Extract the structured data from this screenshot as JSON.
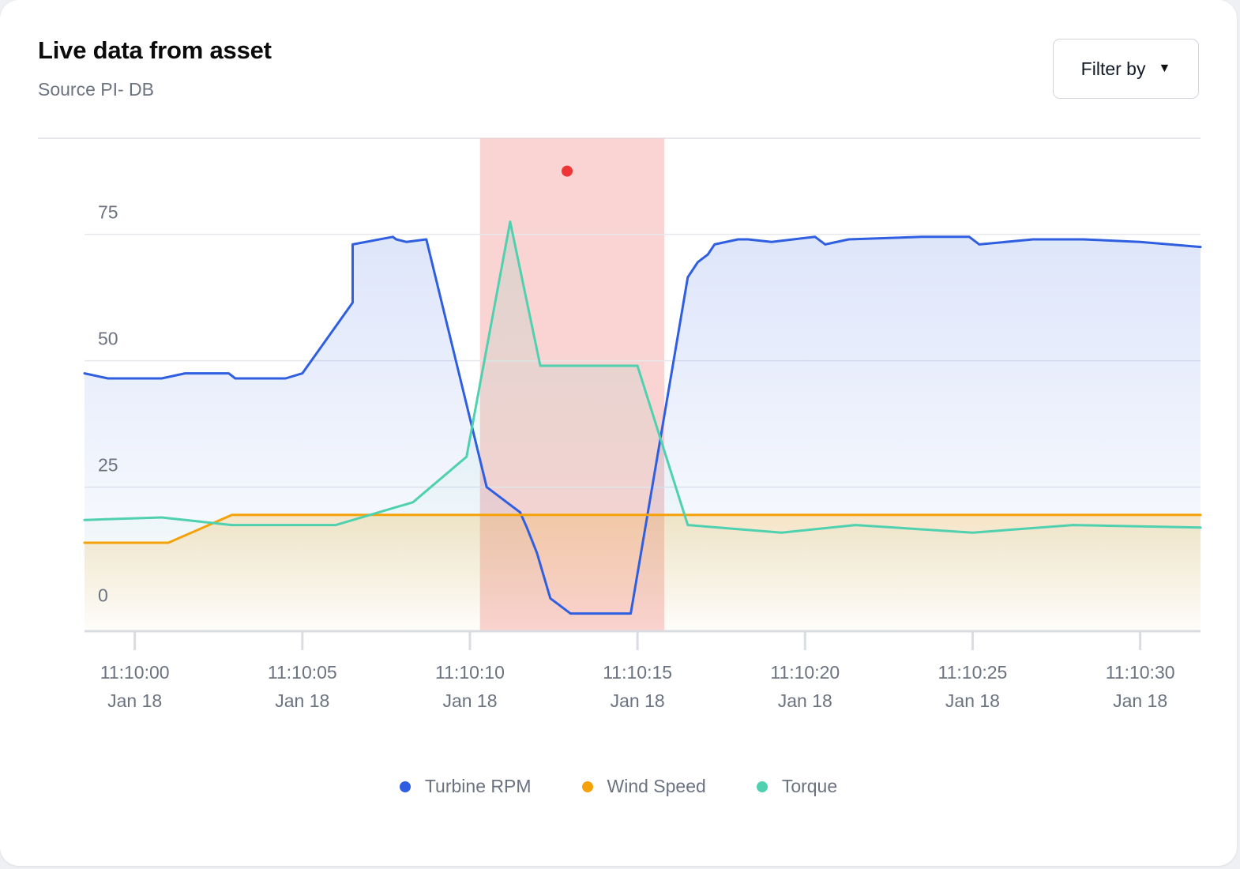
{
  "header": {
    "title": "Live data from asset",
    "subtitle": "Source PI- DB",
    "filter_label": "Filter by",
    "filter_icon": "caret-down-icon"
  },
  "colors": {
    "turbine_rpm": "#2f5fe0",
    "wind_speed": "#f5a20a",
    "torque": "#4fd1b0",
    "anomaly_band": "#f8c4c4",
    "anomaly_marker": "#ef3535"
  },
  "chart_data": {
    "type": "area",
    "title": "",
    "xlabel": "",
    "ylabel": "",
    "ylim": [
      -3.5,
      94
    ],
    "xlim": [
      -1.5,
      31.8
    ],
    "x_ticks": [
      {
        "x": 0,
        "time": "11:10:00",
        "date": "Jan 18"
      },
      {
        "x": 5,
        "time": "11:10:05",
        "date": "Jan 18"
      },
      {
        "x": 10,
        "time": "11:10:10",
        "date": "Jan 18"
      },
      {
        "x": 15,
        "time": "11:10:15",
        "date": "Jan 18"
      },
      {
        "x": 20,
        "time": "11:10:20",
        "date": "Jan 18"
      },
      {
        "x": 25,
        "time": "11:10:25",
        "date": "Jan 18"
      },
      {
        "x": 30,
        "time": "11:10:30",
        "date": "Jan 18"
      }
    ],
    "y_ticks": [
      0,
      25,
      50,
      75
    ],
    "grid": true,
    "legend_position": "bottom",
    "highlight_band": {
      "x_start": 10.3,
      "x_end": 15.8
    },
    "anomaly_point": {
      "x": 12.9,
      "y": 87.5
    },
    "series": [
      {
        "name": "Turbine RPM",
        "color_key": "turbine_rpm",
        "x": [
          -1.5,
          -0.8,
          0.8,
          1.5,
          2.8,
          3.0,
          4.5,
          5.0,
          6.5,
          6.5,
          7.7,
          7.8,
          8.1,
          8.7,
          10.5,
          11.5,
          11.7,
          12.0,
          12.4,
          13.0,
          14.8,
          16.5,
          16.8,
          17.1,
          17.3,
          18.0,
          18.3,
          19.0,
          20.3,
          20.6,
          21.3,
          23.5,
          24.9,
          25.2,
          26.8,
          28.3,
          30.0,
          31.8
        ],
        "y": [
          47.5,
          46.5,
          46.5,
          47.5,
          47.5,
          46.5,
          46.5,
          47.5,
          61.5,
          73,
          74.5,
          74,
          73.5,
          74,
          25,
          20,
          17,
          12,
          3,
          0,
          0,
          66.5,
          69.5,
          71,
          73,
          74,
          74,
          73.5,
          74.5,
          73,
          74,
          74.5,
          74.5,
          73,
          74,
          74,
          73.5,
          72.5
        ]
      },
      {
        "name": "Wind Speed",
        "color_key": "wind_speed",
        "x": [
          -1.5,
          1.0,
          2.9,
          31.8
        ],
        "y": [
          14,
          14,
          19.5,
          19.5
        ]
      },
      {
        "name": "Torque",
        "color_key": "torque",
        "x": [
          -1.5,
          0.8,
          2.9,
          4.7,
          6.0,
          8.3,
          9.9,
          11.2,
          12.1,
          15.0,
          16.5,
          19.3,
          21.5,
          25.0,
          28.0,
          31.8
        ],
        "y": [
          18.5,
          19,
          17.5,
          17.5,
          17.5,
          22,
          31,
          77.5,
          49,
          49,
          17.5,
          16,
          17.5,
          16,
          17.5,
          17
        ]
      }
    ]
  }
}
